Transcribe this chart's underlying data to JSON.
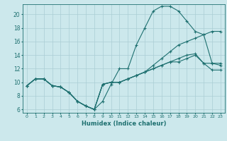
{
  "xlabel": "Humidex (Indice chaleur)",
  "bg_color": "#cce8ec",
  "grid_color": "#aacdd4",
  "line_color": "#1e7070",
  "xlim": [
    -0.5,
    23.5
  ],
  "ylim": [
    5.5,
    21.5
  ],
  "xticks": [
    0,
    1,
    2,
    3,
    4,
    5,
    6,
    7,
    8,
    9,
    10,
    11,
    12,
    13,
    14,
    15,
    16,
    17,
    18,
    19,
    20,
    21,
    22,
    23
  ],
  "yticks": [
    6,
    8,
    10,
    12,
    14,
    16,
    18,
    20
  ],
  "line1_x": [
    0,
    1,
    2,
    3,
    4,
    5,
    6,
    7,
    8,
    9,
    10,
    11,
    12,
    13,
    14,
    15,
    16,
    17,
    18,
    19,
    20,
    21,
    22,
    23
  ],
  "line1_y": [
    9.5,
    10.5,
    10.5,
    9.5,
    9.3,
    8.5,
    7.2,
    6.5,
    6.0,
    7.2,
    9.7,
    12.0,
    12.0,
    15.5,
    18.0,
    20.5,
    21.2,
    21.2,
    20.5,
    19.0,
    17.5,
    17.0,
    12.8,
    12.5
  ],
  "line2_x": [
    0,
    1,
    2,
    3,
    4,
    5,
    6,
    7,
    8,
    9,
    10,
    11,
    12,
    13,
    14,
    15,
    16,
    17,
    18,
    19,
    20,
    21,
    22,
    23
  ],
  "line2_y": [
    9.5,
    10.5,
    10.5,
    9.5,
    9.3,
    8.5,
    7.2,
    6.5,
    6.0,
    9.7,
    10.0,
    10.0,
    10.5,
    11.0,
    11.5,
    12.5,
    13.5,
    14.5,
    15.5,
    16.0,
    16.5,
    17.0,
    17.5,
    17.5
  ],
  "line3_x": [
    0,
    1,
    2,
    3,
    4,
    5,
    6,
    7,
    8,
    9,
    10,
    11,
    12,
    13,
    14,
    15,
    16,
    17,
    18,
    19,
    20,
    21,
    22,
    23
  ],
  "line3_y": [
    9.5,
    10.5,
    10.5,
    9.5,
    9.3,
    8.5,
    7.2,
    6.5,
    6.0,
    9.7,
    10.0,
    10.0,
    10.5,
    11.0,
    11.5,
    12.0,
    12.5,
    13.0,
    13.5,
    14.0,
    14.2,
    12.8,
    12.8,
    12.8
  ],
  "line4_x": [
    0,
    1,
    2,
    3,
    4,
    5,
    6,
    7,
    8,
    9,
    10,
    11,
    12,
    13,
    14,
    15,
    16,
    17,
    18,
    19,
    20,
    21,
    22,
    23
  ],
  "line4_y": [
    9.5,
    10.5,
    10.5,
    9.5,
    9.3,
    8.5,
    7.2,
    6.5,
    6.0,
    9.7,
    10.0,
    10.0,
    10.5,
    11.0,
    11.5,
    12.0,
    12.5,
    13.0,
    13.0,
    13.5,
    14.0,
    12.8,
    11.8,
    11.8
  ]
}
